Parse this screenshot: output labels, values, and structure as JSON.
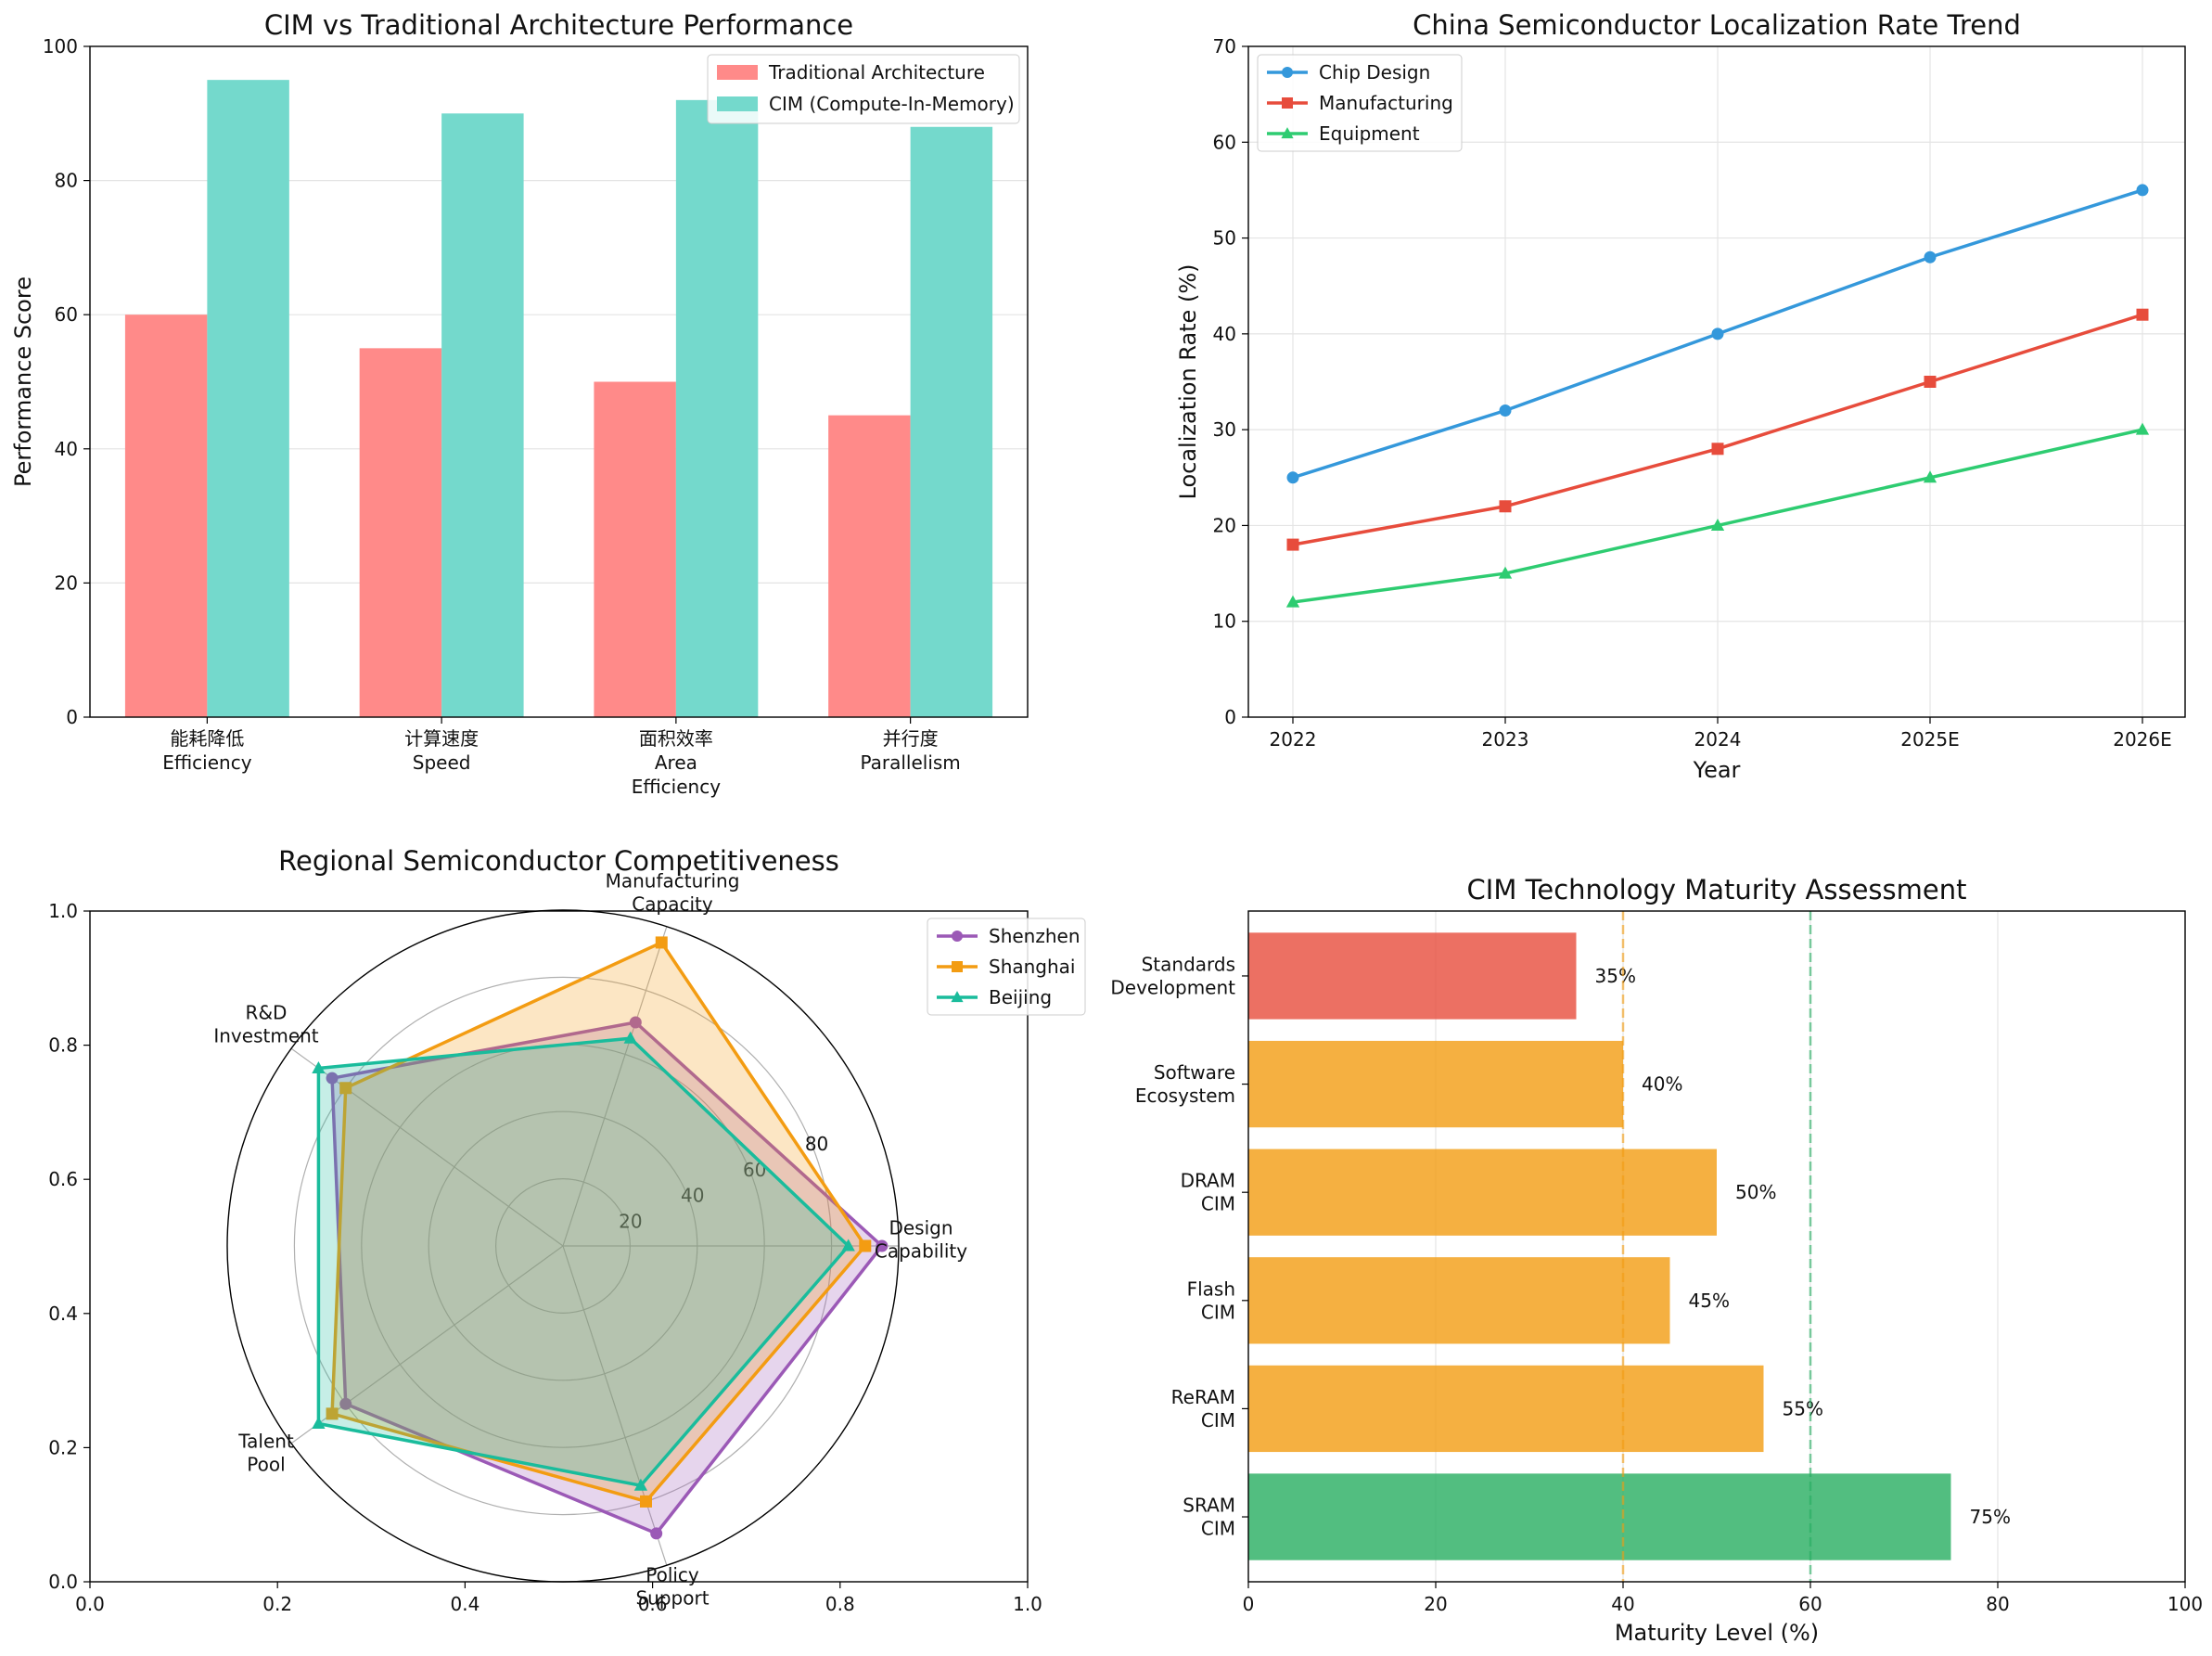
{
  "chart_data": [
    {
      "type": "bar",
      "title": "CIM vs Traditional Architecture Performance",
      "ylabel": "Performance Score",
      "xlabel": "",
      "ylim": [
        0,
        100
      ],
      "yticks": [
        0,
        20,
        40,
        60,
        80,
        100
      ],
      "categories": [
        [
          "能耗降低",
          "Efficiency"
        ],
        [
          "计算速度",
          "Speed"
        ],
        [
          "面积效率",
          "Area",
          "Efficiency"
        ],
        [
          "并行度",
          "Parallelism"
        ]
      ],
      "series": [
        {
          "name": "Traditional Architecture",
          "color": "#ff8a89",
          "values": [
            60,
            55,
            50,
            45
          ]
        },
        {
          "name": "CIM (Compute-In-Memory)",
          "color": "#74d9cc",
          "values": [
            95,
            90,
            92,
            88
          ]
        }
      ],
      "legend": "top-right",
      "grid": "y"
    },
    {
      "type": "line",
      "title": "China Semiconductor Localization Rate Trend",
      "xlabel": "Year",
      "ylabel": "Localization Rate (%)",
      "categories": [
        "2022",
        "2023",
        "2024",
        "2025E",
        "2026E"
      ],
      "ylim": [
        0,
        70
      ],
      "yticks": [
        0,
        10,
        20,
        30,
        40,
        50,
        60,
        70
      ],
      "series": [
        {
          "name": "Chip Design",
          "color": "#3498db",
          "marker": "circle",
          "values": [
            25,
            32,
            40,
            48,
            55
          ]
        },
        {
          "name": "Manufacturing",
          "color": "#e74c3c",
          "marker": "square",
          "values": [
            18,
            22,
            28,
            35,
            42
          ]
        },
        {
          "name": "Equipment",
          "color": "#2ecc71",
          "marker": "triangle",
          "values": [
            12,
            15,
            20,
            25,
            30
          ]
        }
      ],
      "legend": "top-left",
      "grid": true
    },
    {
      "type": "radar",
      "title": "Regional Semiconductor Competitiveness",
      "axes": [
        [
          "Design",
          "Capability"
        ],
        [
          "Manufacturing",
          "Capacity"
        ],
        [
          "R&D",
          "Investment"
        ],
        [
          "Talent",
          "Pool"
        ],
        [
          "Policy",
          "Support"
        ]
      ],
      "rmax": 100,
      "rticks": [
        20,
        40,
        60,
        80
      ],
      "outer_xticks": [
        "0.0",
        "0.2",
        "0.4",
        "0.6",
        "0.8",
        "1.0"
      ],
      "outer_yticks": [
        "0.0",
        "0.2",
        "0.4",
        "0.6",
        "0.8",
        "1.0"
      ],
      "series": [
        {
          "name": "Shenzhen",
          "color": "#9b59b6",
          "marker": "circle",
          "values": [
            95,
            70,
            85,
            80,
            90
          ]
        },
        {
          "name": "Shanghai",
          "color": "#f39c12",
          "marker": "square",
          "values": [
            90,
            95,
            80,
            85,
            80
          ]
        },
        {
          "name": "Beijing",
          "color": "#1abc9c",
          "marker": "triangle",
          "values": [
            85,
            65,
            90,
            90,
            75
          ]
        }
      ],
      "legend": "top-right"
    },
    {
      "type": "barh",
      "title": "CIM Technology Maturity Assessment",
      "xlabel": "Maturity Level (%)",
      "xlim": [
        0,
        100
      ],
      "xticks": [
        0,
        20,
        40,
        60,
        80,
        100
      ],
      "categories": [
        [
          "Standards",
          "Development"
        ],
        [
          "Software",
          "Ecosystem"
        ],
        [
          "DRAM",
          "CIM"
        ],
        [
          "Flash",
          "CIM"
        ],
        [
          "ReRAM",
          "CIM"
        ],
        [
          "SRAM",
          "CIM"
        ]
      ],
      "values": [
        35,
        40,
        50,
        45,
        55,
        75
      ],
      "value_labels": [
        "35%",
        "40%",
        "50%",
        "45%",
        "55%",
        "75%"
      ],
      "colors": [
        "#e74c3c",
        "#f39c12",
        "#f39c12",
        "#f39c12",
        "#f39c12",
        "#27ae60"
      ],
      "reference_lines": [
        {
          "value": 40,
          "color": "#f39c12"
        },
        {
          "value": 60,
          "color": "#27ae60"
        }
      ],
      "grid": "x"
    }
  ]
}
